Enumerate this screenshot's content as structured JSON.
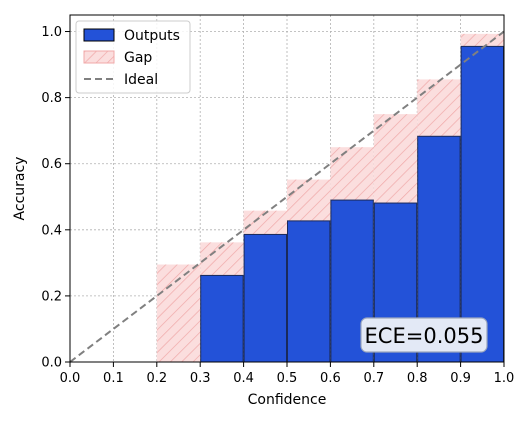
{
  "chart_data": {
    "type": "bar",
    "xlabel": "Confidence",
    "ylabel": "Accuracy",
    "xlim": [
      0.0,
      1.0
    ],
    "ylim": [
      0.0,
      1.05
    ],
    "xticks": [
      "0.0",
      "0.1",
      "0.2",
      "0.3",
      "0.4",
      "0.5",
      "0.6",
      "0.7",
      "0.8",
      "0.9",
      "1.0"
    ],
    "yticks": [
      "0.0",
      "0.2",
      "0.4",
      "0.6",
      "0.8",
      "1.0"
    ],
    "grid": true,
    "legend_position": "top-left",
    "bins": [
      {
        "lower": 0.2,
        "upper": 0.3,
        "output": 0.0,
        "expected": 0.295
      },
      {
        "lower": 0.3,
        "upper": 0.4,
        "output": 0.262,
        "expected": 0.362
      },
      {
        "lower": 0.4,
        "upper": 0.5,
        "output": 0.386,
        "expected": 0.458
      },
      {
        "lower": 0.5,
        "upper": 0.6,
        "output": 0.427,
        "expected": 0.552
      },
      {
        "lower": 0.6,
        "upper": 0.7,
        "output": 0.49,
        "expected": 0.65
      },
      {
        "lower": 0.7,
        "upper": 0.8,
        "output": 0.481,
        "expected": 0.75
      },
      {
        "lower": 0.8,
        "upper": 0.9,
        "output": 0.683,
        "expected": 0.855
      },
      {
        "lower": 0.9,
        "upper": 1.0,
        "output": 0.955,
        "expected": 0.993
      }
    ],
    "series": [
      {
        "name": "Outputs",
        "color": "#2352d8"
      },
      {
        "name": "Gap",
        "color": "#f6c4c4"
      },
      {
        "name": "Ideal",
        "color": "#808080"
      }
    ],
    "annotation": "ECE=0.055"
  }
}
